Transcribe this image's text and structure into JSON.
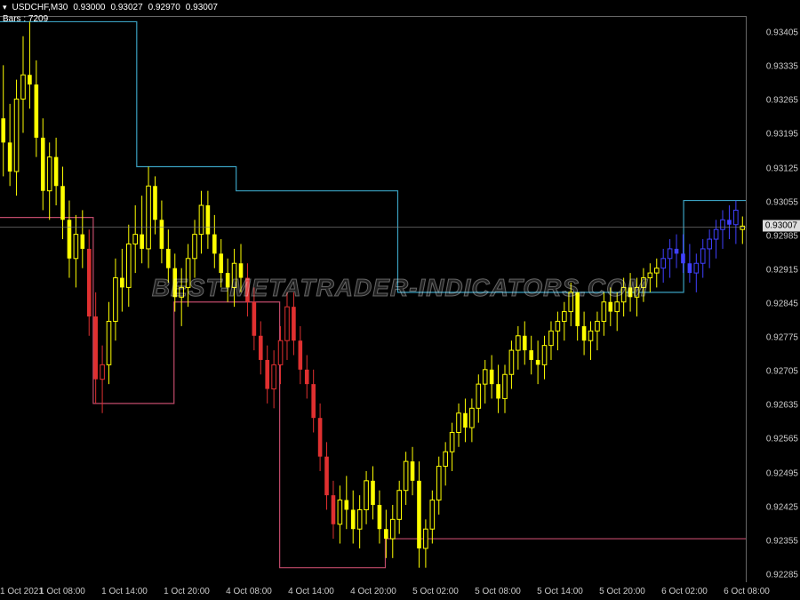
{
  "header": {
    "symbol": "USDCHF,M30",
    "ohlc": [
      "0.93000",
      "0.93027",
      "0.92970",
      "0.93007"
    ],
    "bars_label": "Bars :",
    "bars_value": "7209"
  },
  "watermark": "BEST-METATRADER-INDICATORS.COM",
  "colors": {
    "background": "#000000",
    "axis_text": "#cccccc",
    "border": "#666666",
    "price_line": "#888888",
    "price_box_bg": "#dddddd",
    "price_box_fg": "#000000",
    "candle_up": "#ffff00",
    "candle_down": "#ffff00",
    "candle_red": "#e03030",
    "candle_blue": "#4040ff",
    "line_high": "#3aa0c0",
    "line_low": "#c04a6a"
  },
  "chart": {
    "type": "candlestick",
    "ymin": 0.9227,
    "ymax": 0.9344,
    "ytick_step": 0.0007,
    "yticks": [
      "0.92285",
      "0.92355",
      "0.92425",
      "0.92495",
      "0.92565",
      "0.92635",
      "0.92705",
      "0.92775",
      "0.92845",
      "0.92915",
      "0.92985",
      "0.93055",
      "0.93125",
      "0.93195",
      "0.93265",
      "0.93335",
      "0.93405"
    ],
    "current_price": "0.93007",
    "xticks": [
      "1 Oct 2021",
      "1 Oct 08:00",
      "1 Oct 14:00",
      "1 Oct 20:00",
      "4 Oct 08:00",
      "4 Oct 14:00",
      "4 Oct 20:00",
      "5 Oct 02:00",
      "5 Oct 08:00",
      "5 Oct 14:00",
      "5 Oct 20:00",
      "6 Oct 02:00",
      "6 Oct 08:00"
    ],
    "high_line": [
      {
        "x": 0,
        "y": 0.9343
      },
      {
        "x": 22,
        "y": 0.9343
      },
      {
        "x": 22,
        "y": 0.9313
      },
      {
        "x": 38,
        "y": 0.9313
      },
      {
        "x": 38,
        "y": 0.9308
      },
      {
        "x": 64,
        "y": 0.9308
      },
      {
        "x": 64,
        "y": 0.9287
      },
      {
        "x": 110,
        "y": 0.9287
      },
      {
        "x": 110,
        "y": 0.9306
      },
      {
        "x": 120,
        "y": 0.9306
      }
    ],
    "low_line": [
      {
        "x": 0,
        "y": 0.93025
      },
      {
        "x": 15,
        "y": 0.93025
      },
      {
        "x": 15,
        "y": 0.9264
      },
      {
        "x": 28,
        "y": 0.9264
      },
      {
        "x": 28,
        "y": 0.9285
      },
      {
        "x": 45,
        "y": 0.9285
      },
      {
        "x": 45,
        "y": 0.923
      },
      {
        "x": 62,
        "y": 0.923
      },
      {
        "x": 62,
        "y": 0.9236
      },
      {
        "x": 120,
        "y": 0.9236
      }
    ],
    "candles": [
      {
        "o": 0.9323,
        "h": 0.9334,
        "l": 0.9311,
        "c": 0.9318,
        "col": "y"
      },
      {
        "o": 0.9318,
        "h": 0.9326,
        "l": 0.9309,
        "c": 0.9312,
        "col": "y"
      },
      {
        "o": 0.9312,
        "h": 0.9331,
        "l": 0.9307,
        "c": 0.9327,
        "col": "y"
      },
      {
        "o": 0.9327,
        "h": 0.934,
        "l": 0.932,
        "c": 0.9332,
        "col": "y"
      },
      {
        "o": 0.9332,
        "h": 0.9343,
        "l": 0.9325,
        "c": 0.933,
        "col": "y"
      },
      {
        "o": 0.933,
        "h": 0.9335,
        "l": 0.9315,
        "c": 0.9319,
        "col": "y"
      },
      {
        "o": 0.9319,
        "h": 0.9323,
        "l": 0.9304,
        "c": 0.9308,
        "col": "y"
      },
      {
        "o": 0.9308,
        "h": 0.9318,
        "l": 0.9302,
        "c": 0.9315,
        "col": "y"
      },
      {
        "o": 0.9315,
        "h": 0.9319,
        "l": 0.9305,
        "c": 0.9309,
        "col": "y"
      },
      {
        "o": 0.9309,
        "h": 0.9313,
        "l": 0.9298,
        "c": 0.9302,
        "col": "y"
      },
      {
        "o": 0.9302,
        "h": 0.9306,
        "l": 0.929,
        "c": 0.9294,
        "col": "y"
      },
      {
        "o": 0.9294,
        "h": 0.9303,
        "l": 0.9288,
        "c": 0.9299,
        "col": "y"
      },
      {
        "o": 0.9299,
        "h": 0.9304,
        "l": 0.9292,
        "c": 0.9296,
        "col": "y"
      },
      {
        "o": 0.9296,
        "h": 0.93,
        "l": 0.9278,
        "c": 0.9282,
        "col": "r"
      },
      {
        "o": 0.9282,
        "h": 0.9287,
        "l": 0.9264,
        "c": 0.9269,
        "col": "r"
      },
      {
        "o": 0.9269,
        "h": 0.9276,
        "l": 0.9262,
        "c": 0.9272,
        "col": "r"
      },
      {
        "o": 0.9272,
        "h": 0.9285,
        "l": 0.9268,
        "c": 0.9281,
        "col": "y"
      },
      {
        "o": 0.9281,
        "h": 0.9294,
        "l": 0.9277,
        "c": 0.929,
        "col": "y"
      },
      {
        "o": 0.929,
        "h": 0.9296,
        "l": 0.9283,
        "c": 0.9288,
        "col": "y"
      },
      {
        "o": 0.9288,
        "h": 0.9301,
        "l": 0.9284,
        "c": 0.9297,
        "col": "y"
      },
      {
        "o": 0.9297,
        "h": 0.9305,
        "l": 0.9291,
        "c": 0.9299,
        "col": "y"
      },
      {
        "o": 0.9299,
        "h": 0.9307,
        "l": 0.9293,
        "c": 0.9296,
        "col": "y"
      },
      {
        "o": 0.9296,
        "h": 0.9313,
        "l": 0.9292,
        "c": 0.9309,
        "col": "y"
      },
      {
        "o": 0.9309,
        "h": 0.9311,
        "l": 0.9299,
        "c": 0.9302,
        "col": "y"
      },
      {
        "o": 0.9302,
        "h": 0.9306,
        "l": 0.9293,
        "c": 0.9296,
        "col": "y"
      },
      {
        "o": 0.9296,
        "h": 0.93,
        "l": 0.9289,
        "c": 0.9292,
        "col": "y"
      },
      {
        "o": 0.9292,
        "h": 0.9295,
        "l": 0.9283,
        "c": 0.9286,
        "col": "y"
      },
      {
        "o": 0.9286,
        "h": 0.9292,
        "l": 0.928,
        "c": 0.9288,
        "col": "y"
      },
      {
        "o": 0.9288,
        "h": 0.9297,
        "l": 0.9284,
        "c": 0.9294,
        "col": "y"
      },
      {
        "o": 0.9294,
        "h": 0.9302,
        "l": 0.929,
        "c": 0.9299,
        "col": "y"
      },
      {
        "o": 0.9299,
        "h": 0.9308,
        "l": 0.9295,
        "c": 0.9305,
        "col": "y"
      },
      {
        "o": 0.9305,
        "h": 0.9308,
        "l": 0.9296,
        "c": 0.9299,
        "col": "y"
      },
      {
        "o": 0.9299,
        "h": 0.9303,
        "l": 0.9292,
        "c": 0.9295,
        "col": "y"
      },
      {
        "o": 0.9295,
        "h": 0.9298,
        "l": 0.9288,
        "c": 0.9291,
        "col": "y"
      },
      {
        "o": 0.9291,
        "h": 0.9294,
        "l": 0.9285,
        "c": 0.9288,
        "col": "y"
      },
      {
        "o": 0.9288,
        "h": 0.9296,
        "l": 0.9284,
        "c": 0.9293,
        "col": "y"
      },
      {
        "o": 0.9293,
        "h": 0.9297,
        "l": 0.9287,
        "c": 0.929,
        "col": "y"
      },
      {
        "o": 0.929,
        "h": 0.9293,
        "l": 0.9282,
        "c": 0.9285,
        "col": "r"
      },
      {
        "o": 0.9285,
        "h": 0.9288,
        "l": 0.9275,
        "c": 0.9278,
        "col": "r"
      },
      {
        "o": 0.9278,
        "h": 0.9281,
        "l": 0.927,
        "c": 0.9273,
        "col": "r"
      },
      {
        "o": 0.9273,
        "h": 0.9276,
        "l": 0.9264,
        "c": 0.9267,
        "col": "r"
      },
      {
        "o": 0.9267,
        "h": 0.9275,
        "l": 0.9263,
        "c": 0.9272,
        "col": "r"
      },
      {
        "o": 0.9272,
        "h": 0.928,
        "l": 0.9268,
        "c": 0.9277,
        "col": "r"
      },
      {
        "o": 0.9277,
        "h": 0.9287,
        "l": 0.9273,
        "c": 0.9284,
        "col": "r"
      },
      {
        "o": 0.9284,
        "h": 0.9287,
        "l": 0.9274,
        "c": 0.9277,
        "col": "r"
      },
      {
        "o": 0.9277,
        "h": 0.928,
        "l": 0.9268,
        "c": 0.9271,
        "col": "r"
      },
      {
        "o": 0.9271,
        "h": 0.9274,
        "l": 0.9265,
        "c": 0.9268,
        "col": "r"
      },
      {
        "o": 0.9268,
        "h": 0.9271,
        "l": 0.9258,
        "c": 0.9261,
        "col": "r"
      },
      {
        "o": 0.9261,
        "h": 0.9264,
        "l": 0.925,
        "c": 0.9253,
        "col": "r"
      },
      {
        "o": 0.9253,
        "h": 0.9256,
        "l": 0.9242,
        "c": 0.9245,
        "col": "r"
      },
      {
        "o": 0.9245,
        "h": 0.9248,
        "l": 0.9236,
        "c": 0.9239,
        "col": "r"
      },
      {
        "o": 0.9239,
        "h": 0.9247,
        "l": 0.9235,
        "c": 0.9244,
        "col": "y"
      },
      {
        "o": 0.9244,
        "h": 0.9249,
        "l": 0.9238,
        "c": 0.9242,
        "col": "y"
      },
      {
        "o": 0.9242,
        "h": 0.9246,
        "l": 0.9235,
        "c": 0.9238,
        "col": "y"
      },
      {
        "o": 0.9238,
        "h": 0.9245,
        "l": 0.9234,
        "c": 0.9242,
        "col": "y"
      },
      {
        "o": 0.9242,
        "h": 0.925,
        "l": 0.9239,
        "c": 0.9248,
        "col": "y"
      },
      {
        "o": 0.9248,
        "h": 0.9251,
        "l": 0.924,
        "c": 0.9243,
        "col": "y"
      },
      {
        "o": 0.9243,
        "h": 0.9246,
        "l": 0.9235,
        "c": 0.9238,
        "col": "y"
      },
      {
        "o": 0.9238,
        "h": 0.9242,
        "l": 0.9232,
        "c": 0.9236,
        "col": "y"
      },
      {
        "o": 0.9236,
        "h": 0.9243,
        "l": 0.9232,
        "c": 0.924,
        "col": "y"
      },
      {
        "o": 0.924,
        "h": 0.9248,
        "l": 0.9237,
        "c": 0.9246,
        "col": "y"
      },
      {
        "o": 0.9246,
        "h": 0.9254,
        "l": 0.9243,
        "c": 0.9252,
        "col": "y"
      },
      {
        "o": 0.9252,
        "h": 0.9255,
        "l": 0.9245,
        "c": 0.9248,
        "col": "y"
      },
      {
        "o": 0.9248,
        "h": 0.9252,
        "l": 0.923,
        "c": 0.9234,
        "col": "y"
      },
      {
        "o": 0.9234,
        "h": 0.924,
        "l": 0.923,
        "c": 0.9238,
        "col": "y"
      },
      {
        "o": 0.9238,
        "h": 0.9246,
        "l": 0.9235,
        "c": 0.9244,
        "col": "y"
      },
      {
        "o": 0.9244,
        "h": 0.9253,
        "l": 0.9241,
        "c": 0.9251,
        "col": "y"
      },
      {
        "o": 0.9251,
        "h": 0.9256,
        "l": 0.9247,
        "c": 0.9254,
        "col": "y"
      },
      {
        "o": 0.9254,
        "h": 0.926,
        "l": 0.925,
        "c": 0.9258,
        "col": "y"
      },
      {
        "o": 0.9258,
        "h": 0.9264,
        "l": 0.9255,
        "c": 0.9262,
        "col": "y"
      },
      {
        "o": 0.9262,
        "h": 0.9265,
        "l": 0.9256,
        "c": 0.9259,
        "col": "y"
      },
      {
        "o": 0.9259,
        "h": 0.9265,
        "l": 0.9256,
        "c": 0.9263,
        "col": "y"
      },
      {
        "o": 0.9263,
        "h": 0.927,
        "l": 0.926,
        "c": 0.9268,
        "col": "y"
      },
      {
        "o": 0.9268,
        "h": 0.9273,
        "l": 0.9264,
        "c": 0.9271,
        "col": "y"
      },
      {
        "o": 0.9271,
        "h": 0.9274,
        "l": 0.9265,
        "c": 0.9268,
        "col": "y"
      },
      {
        "o": 0.9268,
        "h": 0.9272,
        "l": 0.9262,
        "c": 0.9265,
        "col": "y"
      },
      {
        "o": 0.9265,
        "h": 0.9272,
        "l": 0.9262,
        "c": 0.927,
        "col": "y"
      },
      {
        "o": 0.927,
        "h": 0.9277,
        "l": 0.9267,
        "c": 0.9275,
        "col": "y"
      },
      {
        "o": 0.9275,
        "h": 0.928,
        "l": 0.9271,
        "c": 0.9278,
        "col": "y"
      },
      {
        "o": 0.9278,
        "h": 0.9281,
        "l": 0.9272,
        "c": 0.9275,
        "col": "y"
      },
      {
        "o": 0.9275,
        "h": 0.9278,
        "l": 0.927,
        "c": 0.9273,
        "col": "y"
      },
      {
        "o": 0.9273,
        "h": 0.9277,
        "l": 0.9268,
        "c": 0.9272,
        "col": "y"
      },
      {
        "o": 0.9272,
        "h": 0.9278,
        "l": 0.9269,
        "c": 0.9276,
        "col": "y"
      },
      {
        "o": 0.9276,
        "h": 0.9281,
        "l": 0.9273,
        "c": 0.9279,
        "col": "y"
      },
      {
        "o": 0.9279,
        "h": 0.9283,
        "l": 0.9275,
        "c": 0.9281,
        "col": "y"
      },
      {
        "o": 0.9281,
        "h": 0.9285,
        "l": 0.9277,
        "c": 0.9283,
        "col": "y"
      },
      {
        "o": 0.9283,
        "h": 0.9289,
        "l": 0.928,
        "c": 0.9287,
        "col": "y"
      },
      {
        "o": 0.9287,
        "h": 0.9287,
        "l": 0.9277,
        "c": 0.928,
        "col": "y"
      },
      {
        "o": 0.928,
        "h": 0.9283,
        "l": 0.9274,
        "c": 0.9277,
        "col": "y"
      },
      {
        "o": 0.9277,
        "h": 0.9281,
        "l": 0.9273,
        "c": 0.9279,
        "col": "y"
      },
      {
        "o": 0.9279,
        "h": 0.9283,
        "l": 0.9275,
        "c": 0.9281,
        "col": "y"
      },
      {
        "o": 0.9281,
        "h": 0.9287,
        "l": 0.9278,
        "c": 0.9285,
        "col": "y"
      },
      {
        "o": 0.9285,
        "h": 0.9288,
        "l": 0.928,
        "c": 0.9283,
        "col": "y"
      },
      {
        "o": 0.9283,
        "h": 0.9287,
        "l": 0.9279,
        "c": 0.9285,
        "col": "y"
      },
      {
        "o": 0.9285,
        "h": 0.929,
        "l": 0.9282,
        "c": 0.9288,
        "col": "y"
      },
      {
        "o": 0.9288,
        "h": 0.9291,
        "l": 0.9283,
        "c": 0.9286,
        "col": "y"
      },
      {
        "o": 0.9286,
        "h": 0.929,
        "l": 0.9282,
        "c": 0.9288,
        "col": "y"
      },
      {
        "o": 0.9288,
        "h": 0.9292,
        "l": 0.9285,
        "c": 0.929,
        "col": "y"
      },
      {
        "o": 0.929,
        "h": 0.9293,
        "l": 0.9287,
        "c": 0.9291,
        "col": "y"
      },
      {
        "o": 0.9291,
        "h": 0.9294,
        "l": 0.9288,
        "c": 0.9292,
        "col": "y"
      },
      {
        "o": 0.9292,
        "h": 0.9296,
        "l": 0.9289,
        "c": 0.9294,
        "col": "b"
      },
      {
        "o": 0.9294,
        "h": 0.9298,
        "l": 0.929,
        "c": 0.9296,
        "col": "b"
      },
      {
        "o": 0.9296,
        "h": 0.9299,
        "l": 0.9292,
        "c": 0.9295,
        "col": "b"
      },
      {
        "o": 0.9295,
        "h": 0.9299,
        "l": 0.9291,
        "c": 0.9293,
        "col": "b"
      },
      {
        "o": 0.9293,
        "h": 0.9297,
        "l": 0.9289,
        "c": 0.9291,
        "col": "b"
      },
      {
        "o": 0.9291,
        "h": 0.9295,
        "l": 0.9287,
        "c": 0.9293,
        "col": "b"
      },
      {
        "o": 0.9293,
        "h": 0.9298,
        "l": 0.929,
        "c": 0.9296,
        "col": "b"
      },
      {
        "o": 0.9296,
        "h": 0.93,
        "l": 0.9292,
        "c": 0.9298,
        "col": "b"
      },
      {
        "o": 0.9298,
        "h": 0.9302,
        "l": 0.9294,
        "c": 0.93,
        "col": "b"
      },
      {
        "o": 0.93,
        "h": 0.9304,
        "l": 0.9296,
        "c": 0.9302,
        "col": "b"
      },
      {
        "o": 0.9302,
        "h": 0.9305,
        "l": 0.9298,
        "c": 0.9301,
        "col": "b"
      },
      {
        "o": 0.9301,
        "h": 0.9306,
        "l": 0.9297,
        "c": 0.9304,
        "col": "b"
      },
      {
        "o": 0.93,
        "h": 0.93027,
        "l": 0.9297,
        "c": 0.93007,
        "col": "y"
      }
    ]
  }
}
